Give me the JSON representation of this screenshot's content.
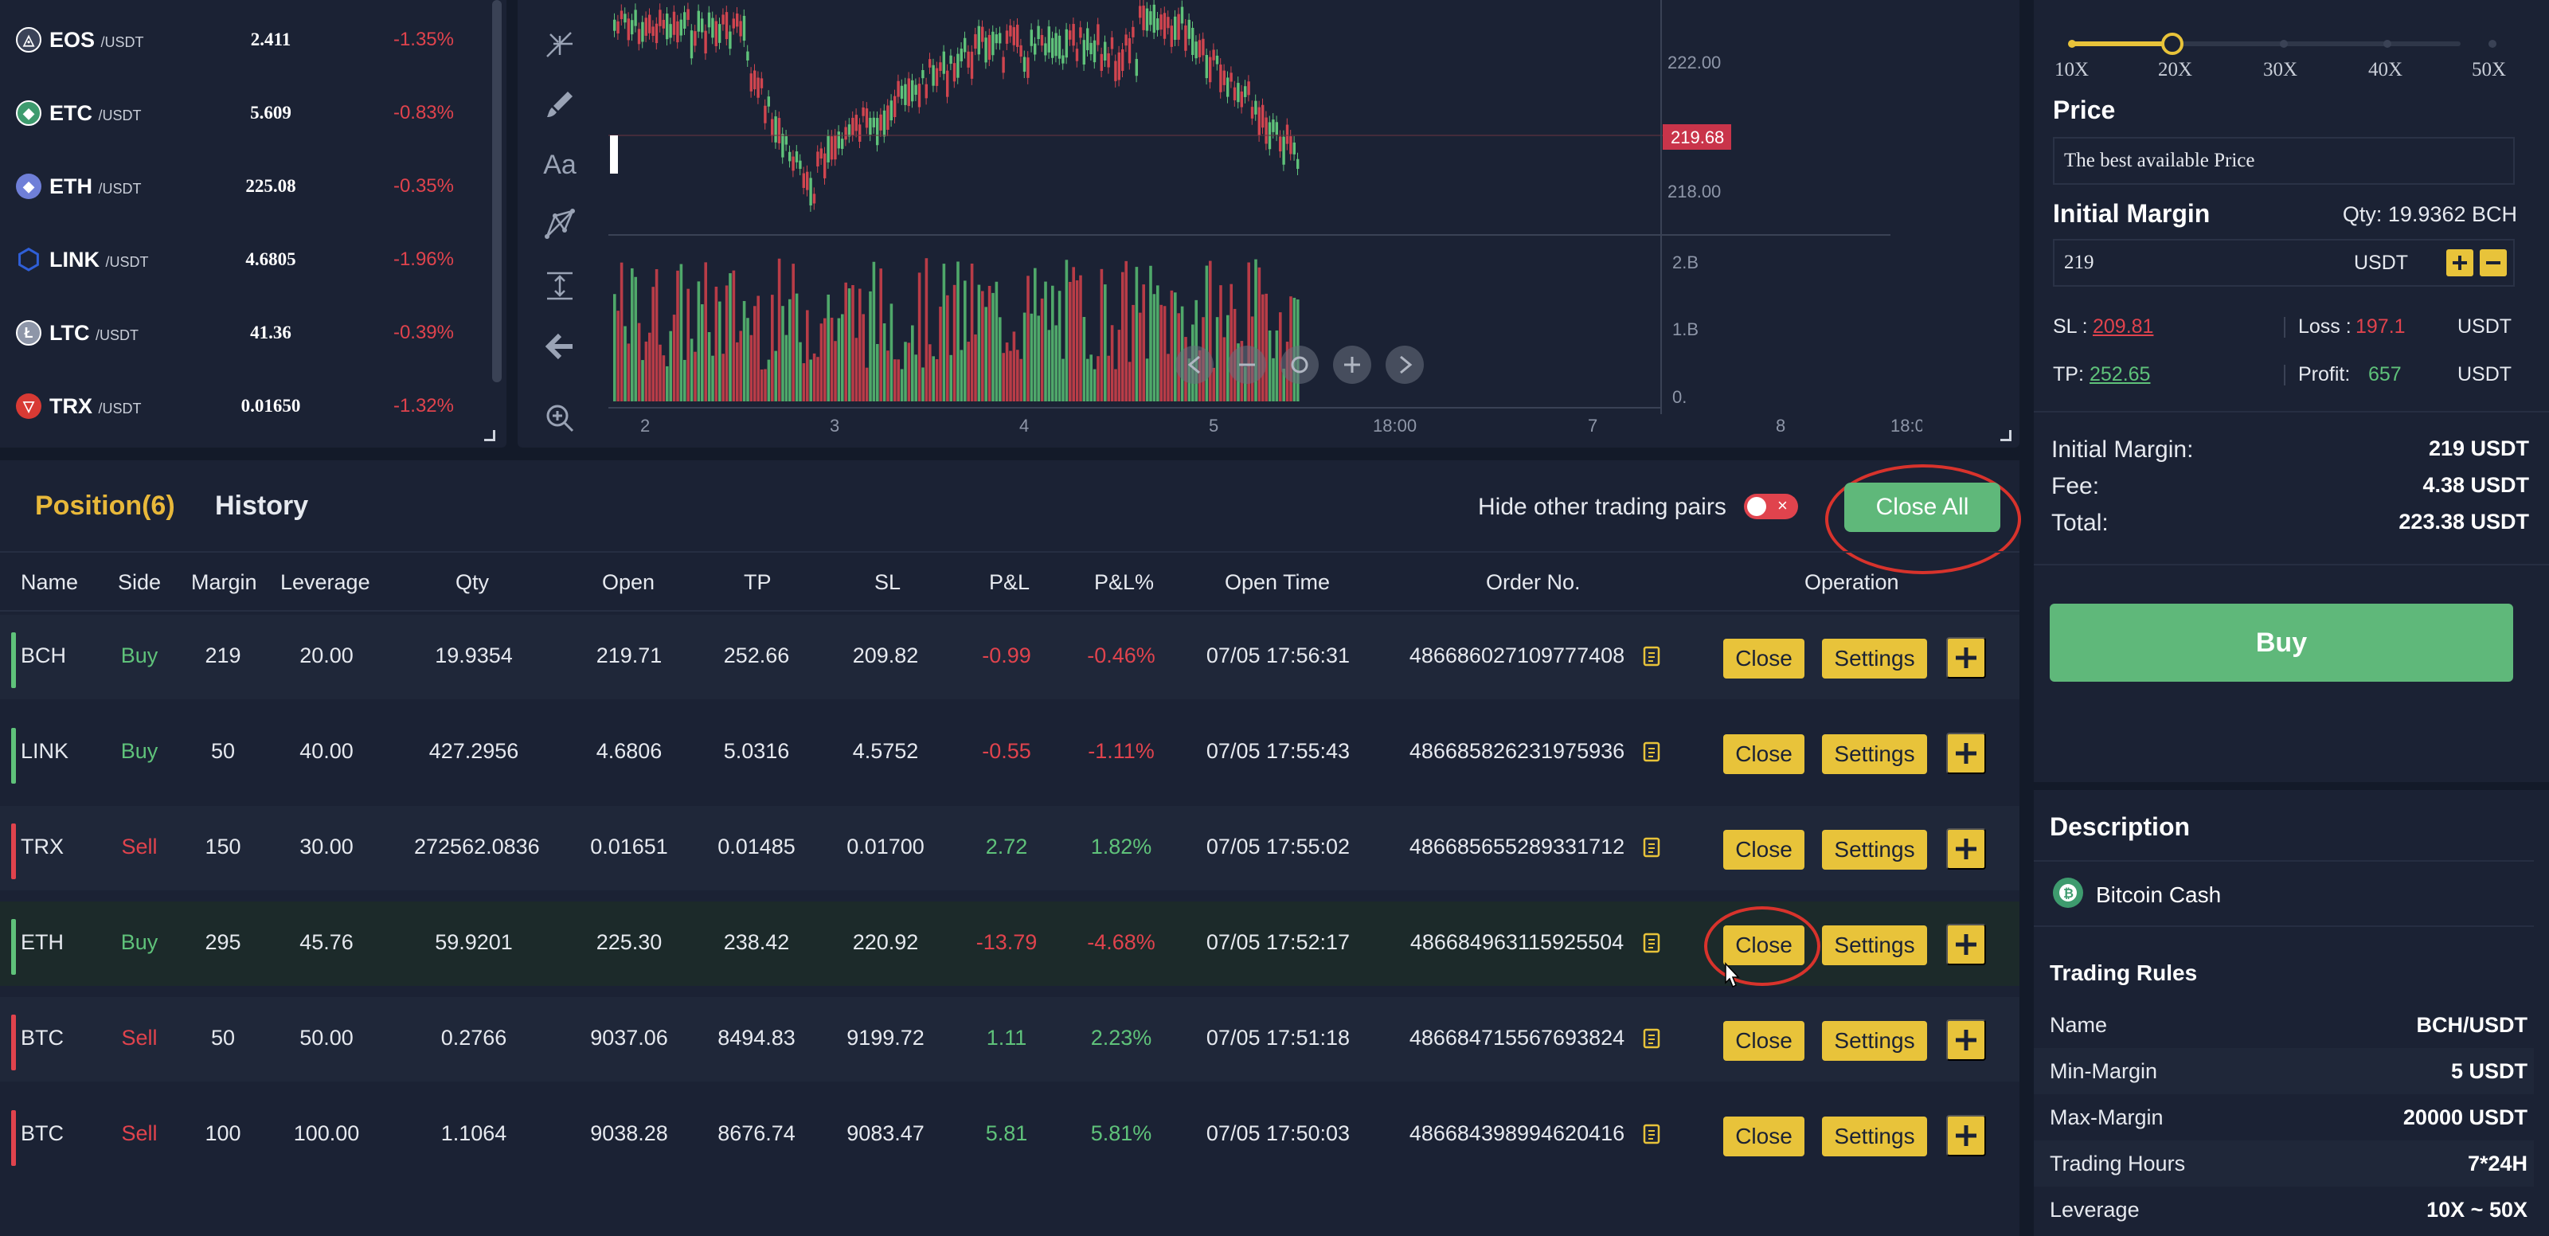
{
  "tickers": [
    {
      "symbol": "EOS",
      "quote": "/USDT",
      "price": "2.411",
      "change": "-1.35%",
      "icon": "eos-coin-icon",
      "color": "#3b4358"
    },
    {
      "symbol": "ETC",
      "quote": "/USDT",
      "price": "5.609",
      "change": "-0.83%",
      "icon": "etc-coin-icon",
      "color": "#3e9b6e"
    },
    {
      "symbol": "ETH",
      "quote": "/USDT",
      "price": "225.08",
      "change": "-0.35%",
      "icon": "eth-coin-icon",
      "color": "#6f7fd8"
    },
    {
      "symbol": "LINK",
      "quote": "/USDT",
      "price": "4.6805",
      "change": "-1.96%",
      "icon": "link-coin-icon",
      "color": "#2f5fd8"
    },
    {
      "symbol": "LTC",
      "quote": "/USDT",
      "price": "41.36",
      "change": "-0.39%",
      "icon": "ltc-coin-icon",
      "color": "#8e96a8"
    },
    {
      "symbol": "TRX",
      "quote": "/USDT",
      "price": "0.01650",
      "change": "-1.32%",
      "icon": "trx-coin-icon",
      "color": "#d83a34"
    }
  ],
  "chart": {
    "price_axis": [
      "222.00",
      "218.00"
    ],
    "current_price": "219.68",
    "volume_axis": [
      "2.B",
      "1.B",
      "0."
    ],
    "x_axis": [
      "2",
      "3",
      "4",
      "5",
      "18:00",
      "7",
      "8",
      "18:0"
    ],
    "tools": [
      "pitchfork-icon",
      "brush-icon",
      "text-tool-icon",
      "pattern-icon",
      "measure-icon",
      "back-arrow-icon",
      "zoom-in-icon"
    ],
    "text_tool_label": "Aa",
    "zoom_controls": [
      "back-icon",
      "minus-icon",
      "reset-icon",
      "plus-icon",
      "forward-icon"
    ]
  },
  "positions": {
    "tab_position": "Position(6)",
    "tab_history": "History",
    "hide_label": "Hide other trading pairs",
    "close_all_label": "Close All",
    "headers": [
      "Name",
      "Side",
      "Margin",
      "Leverage",
      "Qty",
      "Open",
      "TP",
      "SL",
      "P&L",
      "P&L%",
      "Open Time",
      "Order No.",
      "Operation"
    ],
    "close_label": "Close",
    "settings_label": "Settings",
    "rows": [
      {
        "name": "BCH",
        "side": "Buy",
        "margin": "219",
        "leverage": "20.00",
        "qty": "19.9354",
        "open": "219.71",
        "tp": "252.66",
        "sl": "209.82",
        "pnl": "-0.99",
        "pnl_pct": "-0.46%",
        "open_time": "07/05 17:56:31",
        "order_no": "486686027109777408"
      },
      {
        "name": "LINK",
        "side": "Buy",
        "margin": "50",
        "leverage": "40.00",
        "qty": "427.2956",
        "open": "4.6806",
        "tp": "5.0316",
        "sl": "4.5752",
        "pnl": "-0.55",
        "pnl_pct": "-1.11%",
        "open_time": "07/05 17:55:43",
        "order_no": "486685826231975936"
      },
      {
        "name": "TRX",
        "side": "Sell",
        "margin": "150",
        "leverage": "30.00",
        "qty": "272562.0836",
        "open": "0.01651",
        "tp": "0.01485",
        "sl": "0.01700",
        "pnl": "2.72",
        "pnl_pct": "1.82%",
        "open_time": "07/05 17:55:02",
        "order_no": "486685655289331712"
      },
      {
        "name": "ETH",
        "side": "Buy",
        "margin": "295",
        "leverage": "45.76",
        "qty": "59.9201",
        "open": "225.30",
        "tp": "238.42",
        "sl": "220.92",
        "pnl": "-13.79",
        "pnl_pct": "-4.68%",
        "open_time": "07/05 17:52:17",
        "order_no": "486684963115925504"
      },
      {
        "name": "BTC",
        "side": "Sell",
        "margin": "50",
        "leverage": "50.00",
        "qty": "0.2766",
        "open": "9037.06",
        "tp": "8494.83",
        "sl": "9199.72",
        "pnl": "1.11",
        "pnl_pct": "2.23%",
        "open_time": "07/05 17:51:18",
        "order_no": "486684715567693824"
      },
      {
        "name": "BTC",
        "side": "Sell",
        "margin": "100",
        "leverage": "100.00",
        "qty": "1.1064",
        "open": "9038.28",
        "tp": "8676.74",
        "sl": "9083.47",
        "pnl": "5.81",
        "pnl_pct": "5.81%",
        "open_time": "07/05 17:50:03",
        "order_no": "486684398994620416"
      }
    ]
  },
  "order": {
    "leverage_labels": [
      "10X",
      "20X",
      "30X",
      "40X",
      "50X"
    ],
    "leverage_selected": "20X",
    "price_title": "Price",
    "price_value": "The best available Price",
    "margin_title": "Initial Margin",
    "qty_text": "Qty: 19.9362 BCH",
    "margin_value": "219",
    "margin_unit": "USDT",
    "sl_label": "SL :",
    "sl_value": "209.81",
    "loss_label": "Loss :",
    "loss_value": "197.1",
    "tp_label": "TP:",
    "tp_value": "252.65",
    "profit_label": "Profit:",
    "profit_value": "657",
    "unit": "USDT",
    "summary": [
      {
        "label": "Initial Margin:",
        "value": "219 USDT"
      },
      {
        "label": "Fee:",
        "value": "4.38 USDT"
      },
      {
        "label": "Total:",
        "value": "223.38 USDT"
      }
    ],
    "buy_label": "Buy"
  },
  "description": {
    "title": "Description",
    "coin_name": "Bitcoin Cash",
    "rules_title": "Trading Rules",
    "rules": [
      {
        "label": "Name",
        "value": "BCH/USDT"
      },
      {
        "label": "Min-Margin",
        "value": "5 USDT"
      },
      {
        "label": "Max-Margin",
        "value": "20000 USDT"
      },
      {
        "label": "Trading Hours",
        "value": "7*24H"
      },
      {
        "label": "Leverage",
        "value": "10X ~ 50X"
      }
    ]
  },
  "colors": {
    "up": "#5fc27a",
    "down": "#e0434d",
    "accent": "#e8c33a",
    "buy": "#5fb87a"
  }
}
